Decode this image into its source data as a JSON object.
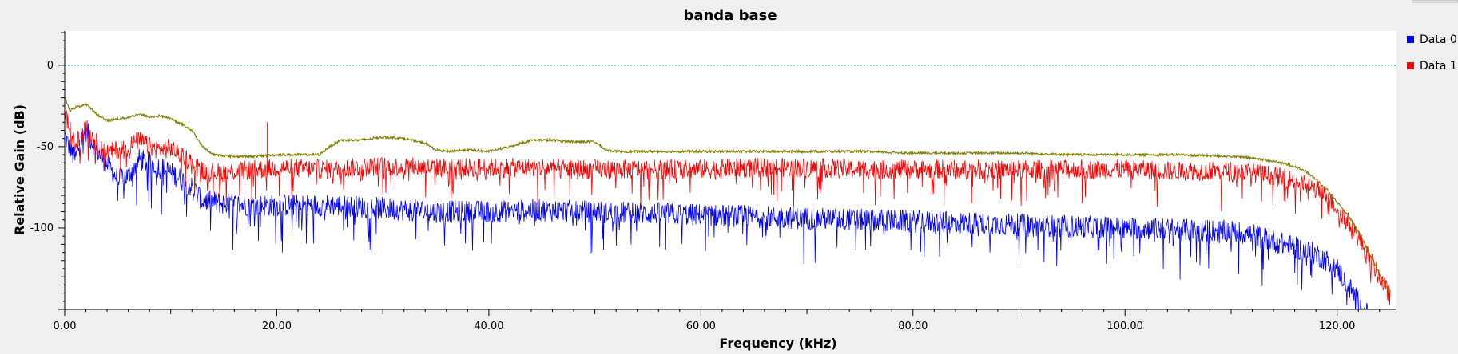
{
  "chart_data": {
    "type": "line",
    "title": "banda base",
    "xlabel": "Frequency (kHz)",
    "ylabel": "Relative Gain (dB)",
    "xlim": [
      0,
      125.6
    ],
    "ylim": [
      -150,
      21
    ],
    "x_ticks": [
      {
        "value": 0,
        "label": "0.00"
      },
      {
        "value": 20,
        "label": "20.00"
      },
      {
        "value": 40,
        "label": "40.00"
      },
      {
        "value": 60,
        "label": "60.00"
      },
      {
        "value": 80,
        "label": "80.00"
      },
      {
        "value": 100,
        "label": "100.00"
      },
      {
        "value": 120,
        "label": "120.00"
      }
    ],
    "y_ticks": [
      {
        "value": 0,
        "label": "0"
      },
      {
        "value": -50,
        "label": "-50"
      },
      {
        "value": -100,
        "label": "-100"
      }
    ],
    "grid": false,
    "legend_position": "right",
    "legend": [
      {
        "name": "Data 0",
        "color": "#0000ff"
      },
      {
        "name": "Data 1",
        "color": "#ff0000"
      }
    ],
    "series": [
      {
        "name": "Data 0",
        "color": "#0000ff",
        "x": [
          0,
          0.5,
          1,
          1.5,
          2,
          3,
          4,
          5,
          6,
          7,
          8,
          9,
          10,
          11,
          12,
          13,
          15,
          18,
          20,
          25,
          30,
          35,
          40,
          45,
          50,
          55,
          60,
          65,
          70,
          75,
          80,
          85,
          90,
          95,
          100,
          105,
          110,
          112,
          114,
          116,
          118,
          119,
          120,
          121,
          122,
          123,
          124,
          125
        ],
        "values": [
          -43,
          -52,
          -58,
          -46,
          -40,
          -52,
          -61,
          -70,
          -68,
          -58,
          -60,
          -63,
          -66,
          -70,
          -75,
          -83,
          -85,
          -86,
          -86,
          -86,
          -88,
          -90,
          -90,
          -89,
          -90,
          -91,
          -92,
          -93,
          -94,
          -95,
          -96,
          -97,
          -98,
          -99,
          -100,
          -101,
          -102,
          -104,
          -108,
          -112,
          -116,
          -120,
          -125,
          -135,
          -145,
          -155,
          -165,
          -175
        ]
      },
      {
        "name": "Data 1",
        "color": "#ff0000",
        "x": [
          0,
          0.5,
          1,
          1.5,
          2,
          3,
          4,
          5,
          6,
          7,
          8,
          9,
          10,
          11,
          12,
          13,
          15,
          18,
          19,
          20,
          25,
          30,
          35,
          40,
          45,
          50,
          55,
          60,
          65,
          70,
          75,
          80,
          85,
          90,
          95,
          100,
          105,
          110,
          112,
          114,
          116,
          118,
          119,
          120,
          121,
          122,
          123,
          124,
          125
        ],
        "values": [
          -28,
          -40,
          -50,
          -42,
          -38,
          -48,
          -54,
          -52,
          -50,
          -46,
          -50,
          -52,
          -51,
          -55,
          -60,
          -65,
          -66,
          -64,
          -64,
          -63,
          -64,
          -62,
          -63,
          -63,
          -63,
          -64,
          -64,
          -64,
          -63,
          -63,
          -64,
          -64,
          -64,
          -64,
          -64,
          -64,
          -65,
          -65,
          -66,
          -68,
          -71,
          -76,
          -80,
          -88,
          -96,
          -106,
          -118,
          -130,
          -142
        ]
      },
      {
        "name": "",
        "color": "#808000",
        "x": [
          0,
          0.5,
          1,
          2,
          3,
          4,
          5,
          6,
          7,
          8,
          9,
          10,
          11,
          12,
          13,
          14,
          16,
          18,
          20,
          22,
          24,
          25,
          26,
          28,
          30,
          32,
          34,
          35,
          36,
          38,
          40,
          42,
          44,
          46,
          48,
          50,
          51,
          52,
          55,
          60,
          65,
          70,
          75,
          80,
          85,
          90,
          95,
          100,
          105,
          110,
          112,
          114,
          116,
          117,
          118,
          119,
          120,
          121,
          122,
          123,
          124,
          125
        ],
        "values": [
          -20,
          -28,
          -26,
          -24,
          -30,
          -34,
          -33,
          -32,
          -30,
          -32,
          -31,
          -33,
          -36,
          -40,
          -50,
          -55,
          -56,
          -56,
          -55,
          -55,
          -55,
          -50,
          -46,
          -46,
          -44,
          -45,
          -48,
          -52,
          -53,
          -52,
          -53,
          -50,
          -46,
          -46,
          -47,
          -47,
          -52,
          -53,
          -53,
          -53,
          -53,
          -53,
          -53,
          -54,
          -54,
          -54,
          -55,
          -55,
          -55,
          -56,
          -57,
          -59,
          -62,
          -65,
          -70,
          -76,
          -84,
          -92,
          -102,
          -115,
          -128,
          -140
        ]
      }
    ]
  }
}
